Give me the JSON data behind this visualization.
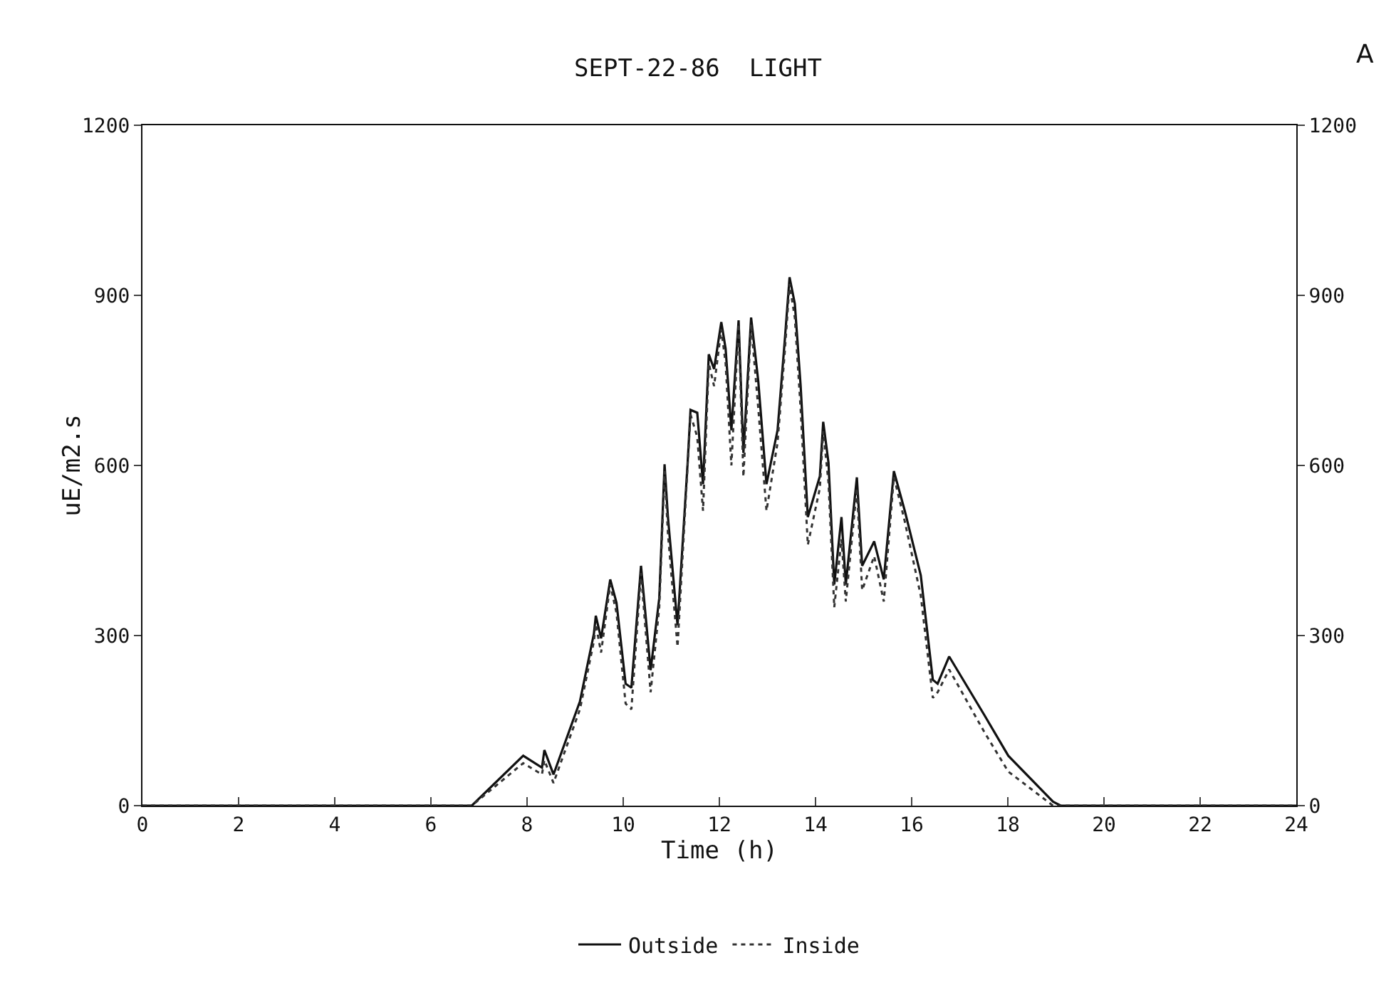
{
  "chart_data": {
    "type": "line",
    "title": "SEPT-22-86  LIGHT",
    "xlabel": "Time (h)",
    "ylabel": "uE/m2.s",
    "annotations": [
      "A"
    ],
    "x": [
      0,
      6.85,
      7.92,
      8.31,
      8.36,
      8.55,
      9.1,
      9.39,
      9.43,
      9.54,
      9.73,
      9.86,
      10.05,
      10.17,
      10.37,
      10.57,
      10.75,
      10.86,
      10.93,
      11.13,
      11.34,
      11.4,
      11.54,
      11.66,
      11.78,
      11.89,
      12.04,
      12.13,
      12.25,
      12.4,
      12.5,
      12.66,
      12.81,
      12.98,
      13.21,
      13.36,
      13.46,
      13.57,
      13.69,
      13.84,
      14.09,
      14.16,
      14.27,
      14.39,
      14.54,
      14.63,
      14.86,
      14.97,
      15.22,
      15.42,
      15.63,
      15.86,
      16.19,
      16.44,
      16.54,
      16.78,
      17.51,
      18.01,
      18.94,
      19.1,
      24
    ],
    "series": [
      {
        "name": "Outside",
        "color": "#111111",
        "line_style": "solid",
        "values": [
          0,
          0,
          88,
          67,
          98,
          55,
          184,
          303,
          335,
          295,
          399,
          358,
          215,
          208,
          423,
          239,
          366,
          602,
          509,
          318,
          605,
          698,
          693,
          567,
          796,
          770,
          853,
          806,
          662,
          856,
          622,
          861,
          748,
          567,
          662,
          820,
          932,
          885,
          741,
          509,
          581,
          677,
          605,
          390,
          509,
          390,
          579,
          423,
          466,
          399,
          590,
          519,
          406,
          222,
          215,
          263,
          160,
          88,
          7,
          0,
          0
        ]
      },
      {
        "name": "Inside",
        "color": "#333333",
        "line_style": "dotted",
        "values": [
          0,
          0,
          75,
          55,
          80,
          40,
          170,
          290,
          320,
          270,
          390,
          340,
          180,
          170,
          410,
          200,
          350,
          590,
          480,
          280,
          600,
          690,
          650,
          520,
          780,
          740,
          840,
          780,
          600,
          850,
          580,
          850,
          700,
          520,
          640,
          800,
          920,
          860,
          700,
          460,
          560,
          660,
          570,
          350,
          470,
          360,
          560,
          380,
          440,
          360,
          580,
          500,
          370,
          190,
          200,
          240,
          130,
          60,
          0,
          0,
          0
        ]
      }
    ],
    "xlim": [
      0,
      24
    ],
    "xticks": [
      0,
      2,
      4,
      6,
      8,
      10,
      12,
      14,
      16,
      18,
      20,
      22,
      24
    ],
    "ylim": [
      0,
      1200
    ],
    "yticks": [
      0,
      300,
      600,
      900,
      1200
    ],
    "y2lim": [
      0,
      1200
    ],
    "y2ticks": [
      0,
      300,
      600,
      900,
      1200
    ],
    "grid": false,
    "legend": "bottom"
  }
}
